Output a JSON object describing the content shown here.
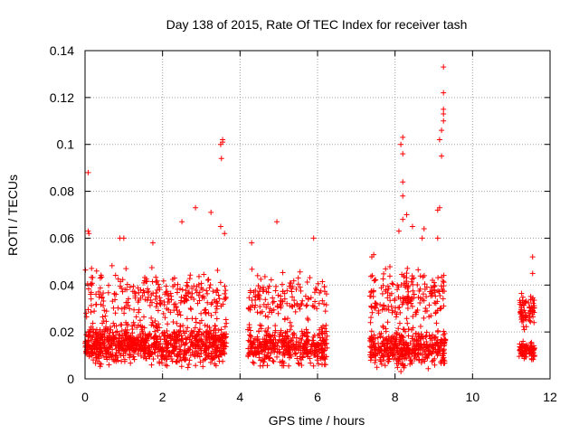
{
  "chart_data": {
    "type": "scatter",
    "title": "Day 138 of 2015, Rate Of TEC Index for receiver tash",
    "xlabel": "GPS time / hours",
    "ylabel": "ROTI / TECUs",
    "xlim": [
      0,
      12
    ],
    "ylim": [
      0,
      0.14
    ],
    "xticks": [
      0,
      2,
      4,
      6,
      8,
      10,
      12
    ],
    "xtick_labels": [
      "0",
      "2",
      "4",
      "6",
      "8",
      "10",
      "12"
    ],
    "yticks": [
      0,
      0.02,
      0.04,
      0.06,
      0.08,
      0.1,
      0.12,
      0.14
    ],
    "ytick_labels": [
      "0",
      "0.02",
      "0.04",
      "0.06",
      "0.08",
      "0.1",
      "0.12",
      "0.14"
    ],
    "grid": true,
    "marker": "+",
    "color": "#ff0000",
    "data_note": "Dense cluster of ~2000 points; clusters approximated, notable outliers listed explicitly",
    "clusters": [
      {
        "x_start": 0.0,
        "x_end": 3.65,
        "y_center": 0.015,
        "y_spread": 0.012,
        "count": 900
      },
      {
        "x_start": 0.0,
        "x_end": 3.65,
        "y_center": 0.035,
        "y_spread": 0.015,
        "count": 260
      },
      {
        "x_start": 4.2,
        "x_end": 6.25,
        "y_center": 0.014,
        "y_spread": 0.011,
        "count": 420
      },
      {
        "x_start": 4.2,
        "x_end": 6.25,
        "y_center": 0.035,
        "y_spread": 0.014,
        "count": 140
      },
      {
        "x_start": 7.35,
        "x_end": 9.3,
        "y_center": 0.013,
        "y_spread": 0.011,
        "count": 420
      },
      {
        "x_start": 7.35,
        "x_end": 9.3,
        "y_center": 0.035,
        "y_spread": 0.016,
        "count": 190
      },
      {
        "x_start": 11.2,
        "x_end": 11.6,
        "y_center": 0.012,
        "y_spread": 0.006,
        "count": 90
      },
      {
        "x_start": 11.2,
        "x_end": 11.6,
        "y_center": 0.03,
        "y_spread": 0.012,
        "count": 70
      }
    ],
    "outliers": [
      [
        0.08,
        0.088
      ],
      [
        0.08,
        0.063
      ],
      [
        0.1,
        0.062
      ],
      [
        0.9,
        0.06
      ],
      [
        1.0,
        0.06
      ],
      [
        1.75,
        0.058
      ],
      [
        2.5,
        0.067
      ],
      [
        2.85,
        0.073
      ],
      [
        3.25,
        0.071
      ],
      [
        3.5,
        0.1
      ],
      [
        3.52,
        0.094
      ],
      [
        3.55,
        0.101
      ],
      [
        3.55,
        0.102
      ],
      [
        3.5,
        0.065
      ],
      [
        3.6,
        0.062
      ],
      [
        4.3,
        0.058
      ],
      [
        4.95,
        0.067
      ],
      [
        5.9,
        0.06
      ],
      [
        7.45,
        0.053
      ],
      [
        7.4,
        0.052
      ],
      [
        8.15,
        0.1
      ],
      [
        8.2,
        0.103
      ],
      [
        8.2,
        0.096
      ],
      [
        8.2,
        0.084
      ],
      [
        8.2,
        0.078
      ],
      [
        8.2,
        0.068
      ],
      [
        8.3,
        0.07
      ],
      [
        8.1,
        0.063
      ],
      [
        8.45,
        0.065
      ],
      [
        8.75,
        0.064
      ],
      [
        8.7,
        0.06
      ],
      [
        9.1,
        0.072
      ],
      [
        9.15,
        0.073
      ],
      [
        9.1,
        0.06
      ],
      [
        9.2,
        0.095
      ],
      [
        9.25,
        0.133
      ],
      [
        9.25,
        0.122
      ],
      [
        9.25,
        0.115
      ],
      [
        9.25,
        0.113
      ],
      [
        9.25,
        0.11
      ],
      [
        9.15,
        0.102
      ],
      [
        9.2,
        0.106
      ],
      [
        11.55,
        0.052
      ],
      [
        11.55,
        0.045
      ]
    ]
  }
}
